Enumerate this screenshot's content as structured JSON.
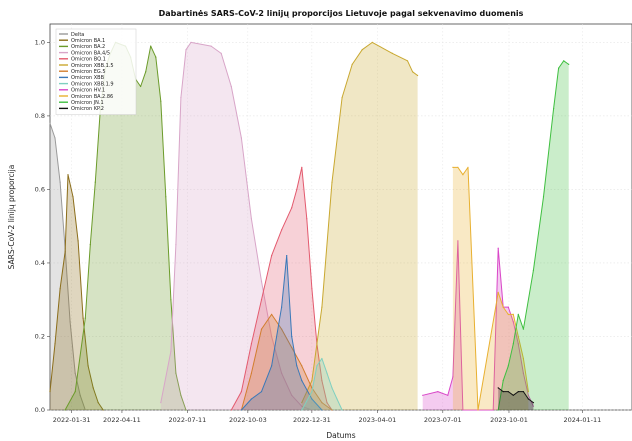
{
  "chart_data": {
    "type": "area",
    "title": "Dabartinės SARS-CoV-2 linijų proporcijos Lietuvoje pagal sekvenavimo duomenis",
    "xlabel": "Datums",
    "ylabel": "SARS-CoV-2 linijų proporcija",
    "ylim": [
      0,
      1.05
    ],
    "y_ticks": [
      "0.0",
      "0.2",
      "0.4",
      "0.6",
      "0.8",
      "1.0"
    ],
    "grid": true,
    "legend_position": "top-left",
    "x_range": [
      "2022-01-01",
      "2024-03-20"
    ],
    "x_ticks": [
      {
        "date": "2022-01-31",
        "label": "2022-01-31"
      },
      {
        "date": "2022-04-11",
        "label": "2022-04-11"
      },
      {
        "date": "2022-07-11",
        "label": "2022-07-11"
      },
      {
        "date": "2022-10-03",
        "label": "2022-10-03"
      },
      {
        "date": "2022-12-31",
        "label": "2022-12-31"
      },
      {
        "date": "2023-04-01",
        "label": "2023-04-01"
      },
      {
        "date": "2023-07-01",
        "label": "2023-07-01"
      },
      {
        "date": "2023-10-01",
        "label": "2023-10-01"
      },
      {
        "date": "2024-01-11",
        "label": "2024-01-11"
      }
    ],
    "series": [
      {
        "name": "Delta",
        "color": "#9a9a9a",
        "points": [
          [
            "2022-01-01",
            0.78
          ],
          [
            "2022-01-08",
            0.74
          ],
          [
            "2022-01-15",
            0.62
          ],
          [
            "2022-01-22",
            0.44
          ],
          [
            "2022-01-29",
            0.24
          ],
          [
            "2022-02-05",
            0.1
          ],
          [
            "2022-02-12",
            0.04
          ],
          [
            "2022-02-19",
            0.0
          ]
        ]
      },
      {
        "name": "Omicron BA.1",
        "color": "#8b6d1a",
        "points": [
          [
            "2022-01-01",
            0.05
          ],
          [
            "2022-01-08",
            0.18
          ],
          [
            "2022-01-15",
            0.33
          ],
          [
            "2022-01-22",
            0.43
          ],
          [
            "2022-01-26",
            0.64
          ],
          [
            "2022-02-02",
            0.58
          ],
          [
            "2022-02-09",
            0.46
          ],
          [
            "2022-02-16",
            0.25
          ],
          [
            "2022-02-23",
            0.12
          ],
          [
            "2022-03-02",
            0.06
          ],
          [
            "2022-03-09",
            0.02
          ],
          [
            "2022-03-16",
            0.0
          ]
        ]
      },
      {
        "name": "Omicron BA.2",
        "color": "#6b9b2a",
        "points": [
          [
            "2022-01-22",
            0.0
          ],
          [
            "2022-02-05",
            0.05
          ],
          [
            "2022-02-19",
            0.25
          ],
          [
            "2022-02-26",
            0.45
          ],
          [
            "2022-03-05",
            0.62
          ],
          [
            "2022-03-12",
            0.82
          ],
          [
            "2022-03-19",
            0.93
          ],
          [
            "2022-03-26",
            0.97
          ],
          [
            "2022-04-02",
            1.0
          ],
          [
            "2022-04-16",
            0.99
          ],
          [
            "2022-04-23",
            0.96
          ],
          [
            "2022-04-30",
            0.9
          ],
          [
            "2022-05-07",
            0.88
          ],
          [
            "2022-05-14",
            0.92
          ],
          [
            "2022-05-21",
            0.99
          ],
          [
            "2022-05-28",
            0.96
          ],
          [
            "2022-06-04",
            0.84
          ],
          [
            "2022-06-11",
            0.58
          ],
          [
            "2022-06-18",
            0.3
          ],
          [
            "2022-06-25",
            0.1
          ],
          [
            "2022-07-02",
            0.04
          ],
          [
            "2022-07-09",
            0.0
          ]
        ]
      },
      {
        "name": "Omicron BA.4/5",
        "color": "#d8a5c8",
        "points": [
          [
            "2022-06-04",
            0.02
          ],
          [
            "2022-06-18",
            0.16
          ],
          [
            "2022-06-25",
            0.45
          ],
          [
            "2022-07-02",
            0.85
          ],
          [
            "2022-07-09",
            0.98
          ],
          [
            "2022-07-16",
            1.0
          ],
          [
            "2022-08-13",
            0.99
          ],
          [
            "2022-08-27",
            0.97
          ],
          [
            "2022-09-10",
            0.88
          ],
          [
            "2022-09-24",
            0.74
          ],
          [
            "2022-10-08",
            0.52
          ],
          [
            "2022-10-22",
            0.35
          ],
          [
            "2022-11-05",
            0.2
          ],
          [
            "2022-11-19",
            0.1
          ],
          [
            "2022-12-03",
            0.04
          ],
          [
            "2022-12-17",
            0.01
          ],
          [
            "2022-12-31",
            0.0
          ]
        ]
      },
      {
        "name": "Omicron BQ.1",
        "color": "#e35a6e",
        "points": [
          [
            "2022-09-10",
            0.0
          ],
          [
            "2022-09-24",
            0.05
          ],
          [
            "2022-10-08",
            0.18
          ],
          [
            "2022-10-22",
            0.3
          ],
          [
            "2022-11-05",
            0.42
          ],
          [
            "2022-11-19",
            0.49
          ],
          [
            "2022-12-03",
            0.55
          ],
          [
            "2022-12-10",
            0.6
          ],
          [
            "2022-12-17",
            0.66
          ],
          [
            "2022-12-24",
            0.52
          ],
          [
            "2022-12-31",
            0.33
          ],
          [
            "2023-01-07",
            0.18
          ],
          [
            "2023-01-14",
            0.08
          ],
          [
            "2023-01-21",
            0.02
          ],
          [
            "2023-01-28",
            0.0
          ]
        ]
      },
      {
        "name": "Omicron XBB.1.5",
        "color": "#c9a830",
        "points": [
          [
            "2022-12-17",
            0.02
          ],
          [
            "2022-12-31",
            0.08
          ],
          [
            "2023-01-14",
            0.28
          ],
          [
            "2023-01-28",
            0.62
          ],
          [
            "2023-02-11",
            0.85
          ],
          [
            "2023-02-25",
            0.94
          ],
          [
            "2023-03-11",
            0.98
          ],
          [
            "2023-03-25",
            1.0
          ],
          [
            "2023-04-22",
            0.97
          ],
          [
            "2023-05-13",
            0.95
          ],
          [
            "2023-05-20",
            0.92
          ],
          [
            "2023-05-27",
            0.91
          ]
        ]
      },
      {
        "name": "Omicron EG.5",
        "color": "#d27d2d",
        "points": [
          [
            "2022-09-24",
            0.0
          ],
          [
            "2022-10-08",
            0.1
          ],
          [
            "2022-10-22",
            0.22
          ],
          [
            "2022-11-05",
            0.26
          ],
          [
            "2022-11-19",
            0.22
          ],
          [
            "2022-12-03",
            0.17
          ],
          [
            "2022-12-17",
            0.12
          ],
          [
            "2022-12-31",
            0.06
          ],
          [
            "2023-01-14",
            0.02
          ],
          [
            "2023-01-28",
            0.0
          ]
        ]
      },
      {
        "name": "Omicron XBB",
        "color": "#3a78b8",
        "points": [
          [
            "2022-09-24",
            0.0
          ],
          [
            "2022-10-08",
            0.03
          ],
          [
            "2022-10-22",
            0.05
          ],
          [
            "2022-11-05",
            0.12
          ],
          [
            "2022-11-19",
            0.28
          ],
          [
            "2022-11-26",
            0.42
          ],
          [
            "2022-12-03",
            0.2
          ],
          [
            "2022-12-10",
            0.12
          ],
          [
            "2022-12-17",
            0.08
          ],
          [
            "2022-12-31",
            0.03
          ],
          [
            "2023-01-14",
            0.0
          ]
        ]
      },
      {
        "name": "Omicron XBB.1.9",
        "color": "#7fd0c0",
        "points": [
          [
            "2022-12-17",
            0.0
          ],
          [
            "2022-12-31",
            0.05
          ],
          [
            "2023-01-07",
            0.12
          ],
          [
            "2023-01-14",
            0.14
          ],
          [
            "2023-01-21",
            0.1
          ],
          [
            "2023-01-28",
            0.06
          ],
          [
            "2023-02-04",
            0.03
          ],
          [
            "2023-02-11",
            0.0
          ]
        ]
      },
      {
        "name": "Omicron HV.1",
        "color": "#d946c8",
        "points": [
          [
            "2023-06-03",
            0.04
          ],
          [
            "2023-06-24",
            0.05
          ],
          [
            "2023-07-08",
            0.04
          ],
          [
            "2023-07-15",
            0.09
          ],
          [
            "2023-07-22",
            0.46
          ],
          [
            "2023-07-29",
            0.0
          ],
          [
            "2023-09-09",
            0.0
          ],
          [
            "2023-09-16",
            0.44
          ],
          [
            "2023-09-23",
            0.28
          ],
          [
            "2023-09-30",
            0.28
          ],
          [
            "2023-10-07",
            0.24
          ],
          [
            "2023-10-14",
            0.18
          ],
          [
            "2023-10-21",
            0.1
          ],
          [
            "2023-10-28",
            0.04
          ],
          [
            "2023-11-04",
            0.01
          ]
        ]
      },
      {
        "name": "Omicron BA.2.86",
        "color": "#e8b030",
        "points": [
          [
            "2023-07-15",
            0.66
          ],
          [
            "2023-07-22",
            0.66
          ],
          [
            "2023-07-29",
            0.64
          ],
          [
            "2023-08-05",
            0.66
          ],
          [
            "2023-08-19",
            0.0
          ],
          [
            "2023-09-16",
            0.32
          ],
          [
            "2023-09-23",
            0.28
          ],
          [
            "2023-09-30",
            0.26
          ],
          [
            "2023-10-07",
            0.26
          ],
          [
            "2023-10-14",
            0.2
          ],
          [
            "2023-10-21",
            0.14
          ],
          [
            "2023-10-28",
            0.05
          ]
        ]
      },
      {
        "name": "Omicron JN.1",
        "color": "#3fbf40",
        "points": [
          [
            "2023-09-16",
            0.0
          ],
          [
            "2023-09-23",
            0.08
          ],
          [
            "2023-09-30",
            0.12
          ],
          [
            "2023-10-07",
            0.18
          ],
          [
            "2023-10-14",
            0.26
          ],
          [
            "2023-10-21",
            0.22
          ],
          [
            "2023-11-04",
            0.38
          ],
          [
            "2023-11-18",
            0.58
          ],
          [
            "2023-12-02",
            0.82
          ],
          [
            "2023-12-09",
            0.93
          ],
          [
            "2023-12-16",
            0.95
          ],
          [
            "2023-12-23",
            0.94
          ]
        ]
      },
      {
        "name": "Omicron KP.2",
        "color": "#111111",
        "points": [
          [
            "2023-09-16",
            0.06
          ],
          [
            "2023-09-23",
            0.05
          ],
          [
            "2023-09-30",
            0.05
          ],
          [
            "2023-10-07",
            0.04
          ],
          [
            "2023-10-14",
            0.05
          ],
          [
            "2023-10-21",
            0.05
          ],
          [
            "2023-10-28",
            0.03
          ],
          [
            "2023-11-04",
            0.02
          ]
        ]
      }
    ]
  }
}
